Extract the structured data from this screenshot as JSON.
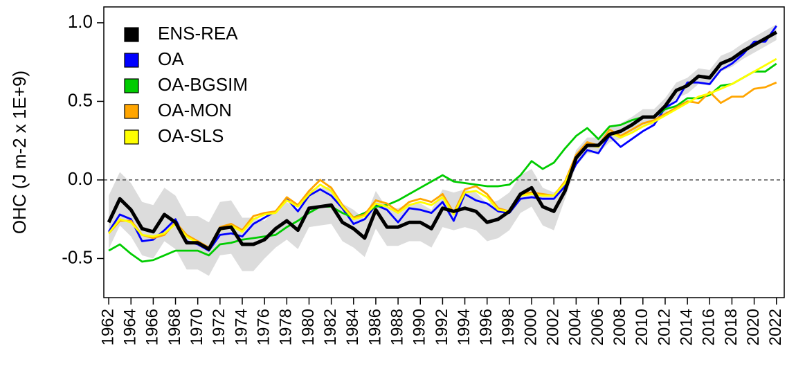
{
  "chart_data": {
    "type": "line",
    "y_label": "OHC (J m-2 x 1E+9)",
    "x": [
      1962,
      1963,
      1964,
      1965,
      1966,
      1967,
      1968,
      1969,
      1970,
      1971,
      1972,
      1973,
      1974,
      1975,
      1976,
      1977,
      1978,
      1979,
      1980,
      1981,
      1982,
      1983,
      1984,
      1985,
      1986,
      1987,
      1988,
      1989,
      1990,
      1991,
      1992,
      1993,
      1994,
      1995,
      1996,
      1997,
      1998,
      1999,
      2000,
      2001,
      2002,
      2003,
      2004,
      2005,
      2006,
      2007,
      2008,
      2009,
      2010,
      2011,
      2012,
      2013,
      2014,
      2015,
      2016,
      2017,
      2018,
      2019,
      2020,
      2021,
      2022
    ],
    "xlim": [
      1961.56,
      2022.7
    ],
    "xticks": [
      1962,
      1964,
      1966,
      1968,
      1970,
      1972,
      1974,
      1976,
      1978,
      1980,
      1982,
      1984,
      1986,
      1988,
      1990,
      1992,
      1994,
      1996,
      1998,
      2000,
      2002,
      2004,
      2006,
      2008,
      2010,
      2012,
      2014,
      2016,
      2018,
      2020,
      2022
    ],
    "ylim": [
      -0.749,
      1.101
    ],
    "yticks": [
      {
        "value": 1.0,
        "label": "1.0"
      },
      0.5,
      {
        "value": 0.0,
        "label": "0.0"
      },
      -0.5
    ],
    "reference_line": 0,
    "legend": "top-left",
    "series": [
      {
        "name": "ENS-REA",
        "color": "#000000",
        "values": [
          -0.27,
          -0.12,
          -0.19,
          -0.31,
          -0.33,
          -0.22,
          -0.27,
          -0.4,
          -0.4,
          -0.44,
          -0.31,
          -0.3,
          -0.41,
          -0.41,
          -0.38,
          -0.31,
          -0.26,
          -0.32,
          -0.18,
          -0.17,
          -0.16,
          -0.27,
          -0.31,
          -0.37,
          -0.19,
          -0.3,
          -0.3,
          -0.27,
          -0.27,
          -0.31,
          -0.18,
          -0.2,
          -0.18,
          -0.2,
          -0.27,
          -0.25,
          -0.2,
          -0.09,
          -0.05,
          -0.17,
          -0.2,
          -0.07,
          0.14,
          0.22,
          0.22,
          0.29,
          0.31,
          0.35,
          0.4,
          0.4,
          0.47,
          0.57,
          0.6,
          0.66,
          0.65,
          0.74,
          0.77,
          0.82,
          0.86,
          0.9,
          0.94
        ],
        "upper": [
          -0.1,
          0.05,
          -0.02,
          -0.14,
          -0.16,
          -0.05,
          -0.1,
          -0.23,
          -0.23,
          -0.27,
          -0.14,
          -0.13,
          -0.24,
          -0.24,
          -0.26,
          -0.19,
          -0.14,
          -0.2,
          -0.06,
          -0.05,
          -0.04,
          -0.15,
          -0.19,
          -0.25,
          -0.07,
          -0.18,
          -0.18,
          -0.15,
          -0.15,
          -0.19,
          -0.06,
          -0.08,
          -0.06,
          -0.08,
          -0.15,
          -0.13,
          -0.08,
          0.03,
          0.07,
          -0.05,
          -0.08,
          -0.02,
          0.19,
          0.27,
          0.27,
          0.34,
          0.36,
          0.4,
          0.45,
          0.45,
          0.52,
          0.62,
          0.65,
          0.71,
          0.7,
          0.79,
          0.82,
          0.87,
          0.91,
          0.95,
          0.99
        ],
        "lower": [
          -0.44,
          -0.29,
          -0.36,
          -0.48,
          -0.5,
          -0.39,
          -0.44,
          -0.57,
          -0.57,
          -0.61,
          -0.48,
          -0.47,
          -0.58,
          -0.58,
          -0.5,
          -0.43,
          -0.38,
          -0.44,
          -0.3,
          -0.29,
          -0.28,
          -0.39,
          -0.43,
          -0.49,
          -0.31,
          -0.42,
          -0.42,
          -0.39,
          -0.39,
          -0.43,
          -0.3,
          -0.32,
          -0.3,
          -0.32,
          -0.39,
          -0.37,
          -0.32,
          -0.21,
          -0.17,
          -0.29,
          -0.32,
          -0.12,
          0.09,
          0.17,
          0.17,
          0.24,
          0.26,
          0.3,
          0.35,
          0.35,
          0.42,
          0.52,
          0.55,
          0.61,
          0.6,
          0.69,
          0.72,
          0.77,
          0.81,
          0.85,
          0.89
        ]
      },
      {
        "name": "OA",
        "color": "#0000ff",
        "values": [
          -0.33,
          -0.22,
          -0.25,
          -0.39,
          -0.38,
          -0.32,
          -0.25,
          -0.39,
          -0.41,
          -0.45,
          -0.35,
          -0.34,
          -0.36,
          -0.28,
          -0.24,
          -0.2,
          -0.12,
          -0.2,
          -0.1,
          -0.06,
          -0.1,
          -0.18,
          -0.28,
          -0.25,
          -0.16,
          -0.19,
          -0.27,
          -0.18,
          -0.19,
          -0.21,
          -0.14,
          -0.26,
          -0.09,
          -0.13,
          -0.15,
          -0.2,
          -0.21,
          -0.12,
          -0.11,
          -0.12,
          -0.12,
          -0.04,
          0.1,
          0.19,
          0.17,
          0.28,
          0.21,
          0.26,
          0.31,
          0.35,
          0.46,
          0.5,
          0.62,
          0.62,
          0.61,
          0.7,
          0.74,
          0.8,
          0.88,
          0.88,
          0.98
        ]
      },
      {
        "name": "OA-BGSIM",
        "color": "#00cc00",
        "values": [
          -0.45,
          -0.41,
          -0.47,
          -0.52,
          -0.51,
          -0.48,
          -0.45,
          -0.45,
          -0.45,
          -0.48,
          -0.41,
          -0.4,
          -0.38,
          -0.37,
          -0.36,
          -0.35,
          -0.3,
          -0.26,
          -0.21,
          -0.17,
          -0.17,
          -0.21,
          -0.24,
          -0.21,
          -0.17,
          -0.16,
          -0.13,
          -0.09,
          -0.05,
          -0.01,
          0.03,
          -0.01,
          -0.02,
          -0.03,
          -0.04,
          -0.04,
          -0.03,
          0.03,
          0.12,
          0.07,
          0.11,
          0.2,
          0.28,
          0.33,
          0.26,
          0.34,
          0.35,
          0.38,
          0.4,
          0.4,
          0.45,
          0.47,
          0.52,
          0.52,
          0.54,
          0.6,
          0.61,
          0.65,
          0.69,
          0.69,
          0.74
        ]
      },
      {
        "name": "OA-MON",
        "color": "#ffa500",
        "values": [
          -0.34,
          -0.26,
          -0.26,
          -0.35,
          -0.37,
          -0.35,
          -0.27,
          -0.35,
          -0.39,
          -0.43,
          -0.3,
          -0.28,
          -0.32,
          -0.23,
          -0.21,
          -0.2,
          -0.11,
          -0.16,
          -0.07,
          0.0,
          -0.05,
          -0.16,
          -0.24,
          -0.22,
          -0.13,
          -0.15,
          -0.2,
          -0.14,
          -0.12,
          -0.14,
          -0.09,
          -0.21,
          -0.06,
          -0.04,
          -0.09,
          -0.18,
          -0.2,
          -0.09,
          -0.08,
          -0.09,
          -0.1,
          -0.01,
          0.16,
          0.24,
          0.22,
          0.32,
          0.28,
          0.32,
          0.36,
          0.38,
          0.42,
          0.46,
          0.5,
          0.49,
          0.56,
          0.49,
          0.53,
          0.53,
          0.58,
          0.59,
          0.62
        ]
      },
      {
        "name": "OA-SLS",
        "color": "#ffff00",
        "values": [
          -0.34,
          -0.25,
          -0.27,
          -0.35,
          -0.36,
          -0.34,
          -0.28,
          -0.36,
          -0.4,
          -0.44,
          -0.32,
          -0.29,
          -0.33,
          -0.25,
          -0.22,
          -0.21,
          -0.13,
          -0.17,
          -0.09,
          -0.03,
          -0.07,
          -0.17,
          -0.25,
          -0.23,
          -0.15,
          -0.17,
          -0.21,
          -0.16,
          -0.14,
          -0.16,
          -0.11,
          -0.22,
          -0.08,
          -0.07,
          -0.11,
          -0.19,
          -0.2,
          -0.1,
          -0.09,
          -0.1,
          -0.1,
          -0.02,
          0.14,
          0.22,
          0.21,
          0.3,
          0.27,
          0.3,
          0.34,
          0.37,
          0.41,
          0.45,
          0.49,
          0.53,
          0.55,
          0.58,
          0.61,
          0.65,
          0.69,
          0.73,
          0.77
        ]
      }
    ]
  }
}
